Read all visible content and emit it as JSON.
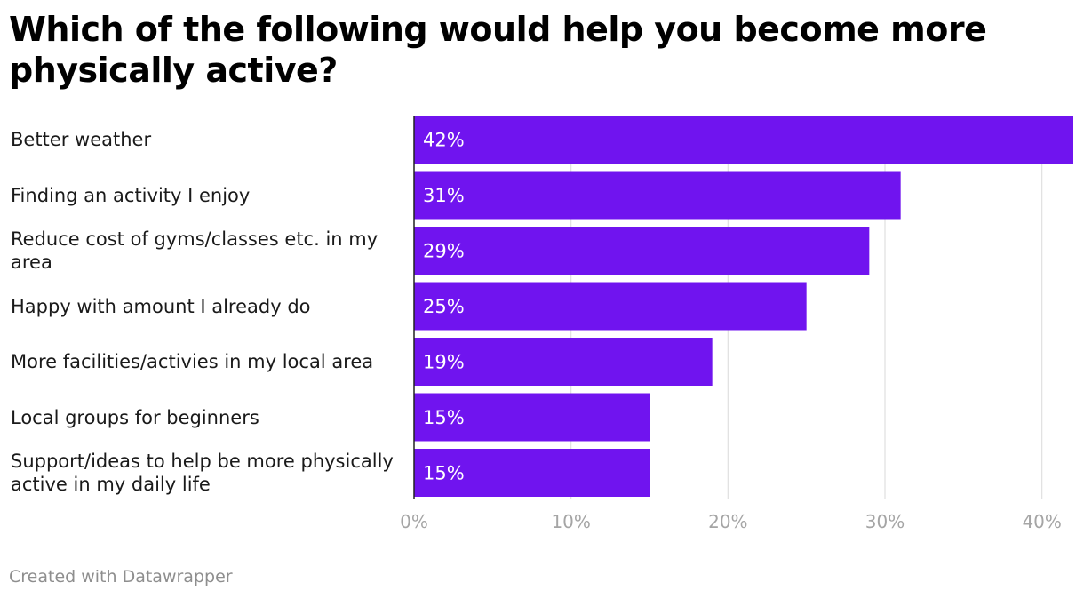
{
  "title": "Which of the following would help you become more physically active?",
  "footer": "Created with Datawrapper",
  "colors": {
    "bar": "#7014ef",
    "grid": "#e0e0e0",
    "axis": "#222222",
    "tick": "#a5a5a5",
    "value_label": "#ffffff"
  },
  "chart_data": {
    "type": "bar",
    "orientation": "horizontal",
    "categories": [
      "Better weather",
      "Finding an activity I enjoy",
      "Reduce cost of gyms/classes etc. in my area",
      "Happy with amount I already do",
      "More facilities/activies in my local area",
      "Local groups for beginners",
      "Support/ideas to help be more physically active in my daily life"
    ],
    "values": [
      42,
      31,
      29,
      25,
      19,
      15,
      15
    ],
    "value_labels": [
      "42%",
      "31%",
      "29%",
      "25%",
      "19%",
      "15%",
      "15%"
    ],
    "xticks": [
      0,
      10,
      20,
      30,
      40
    ],
    "xtick_labels": [
      "0%",
      "10%",
      "20%",
      "30%",
      "40%"
    ],
    "xlim": [
      0,
      42
    ],
    "grid": true,
    "legend": "none"
  }
}
